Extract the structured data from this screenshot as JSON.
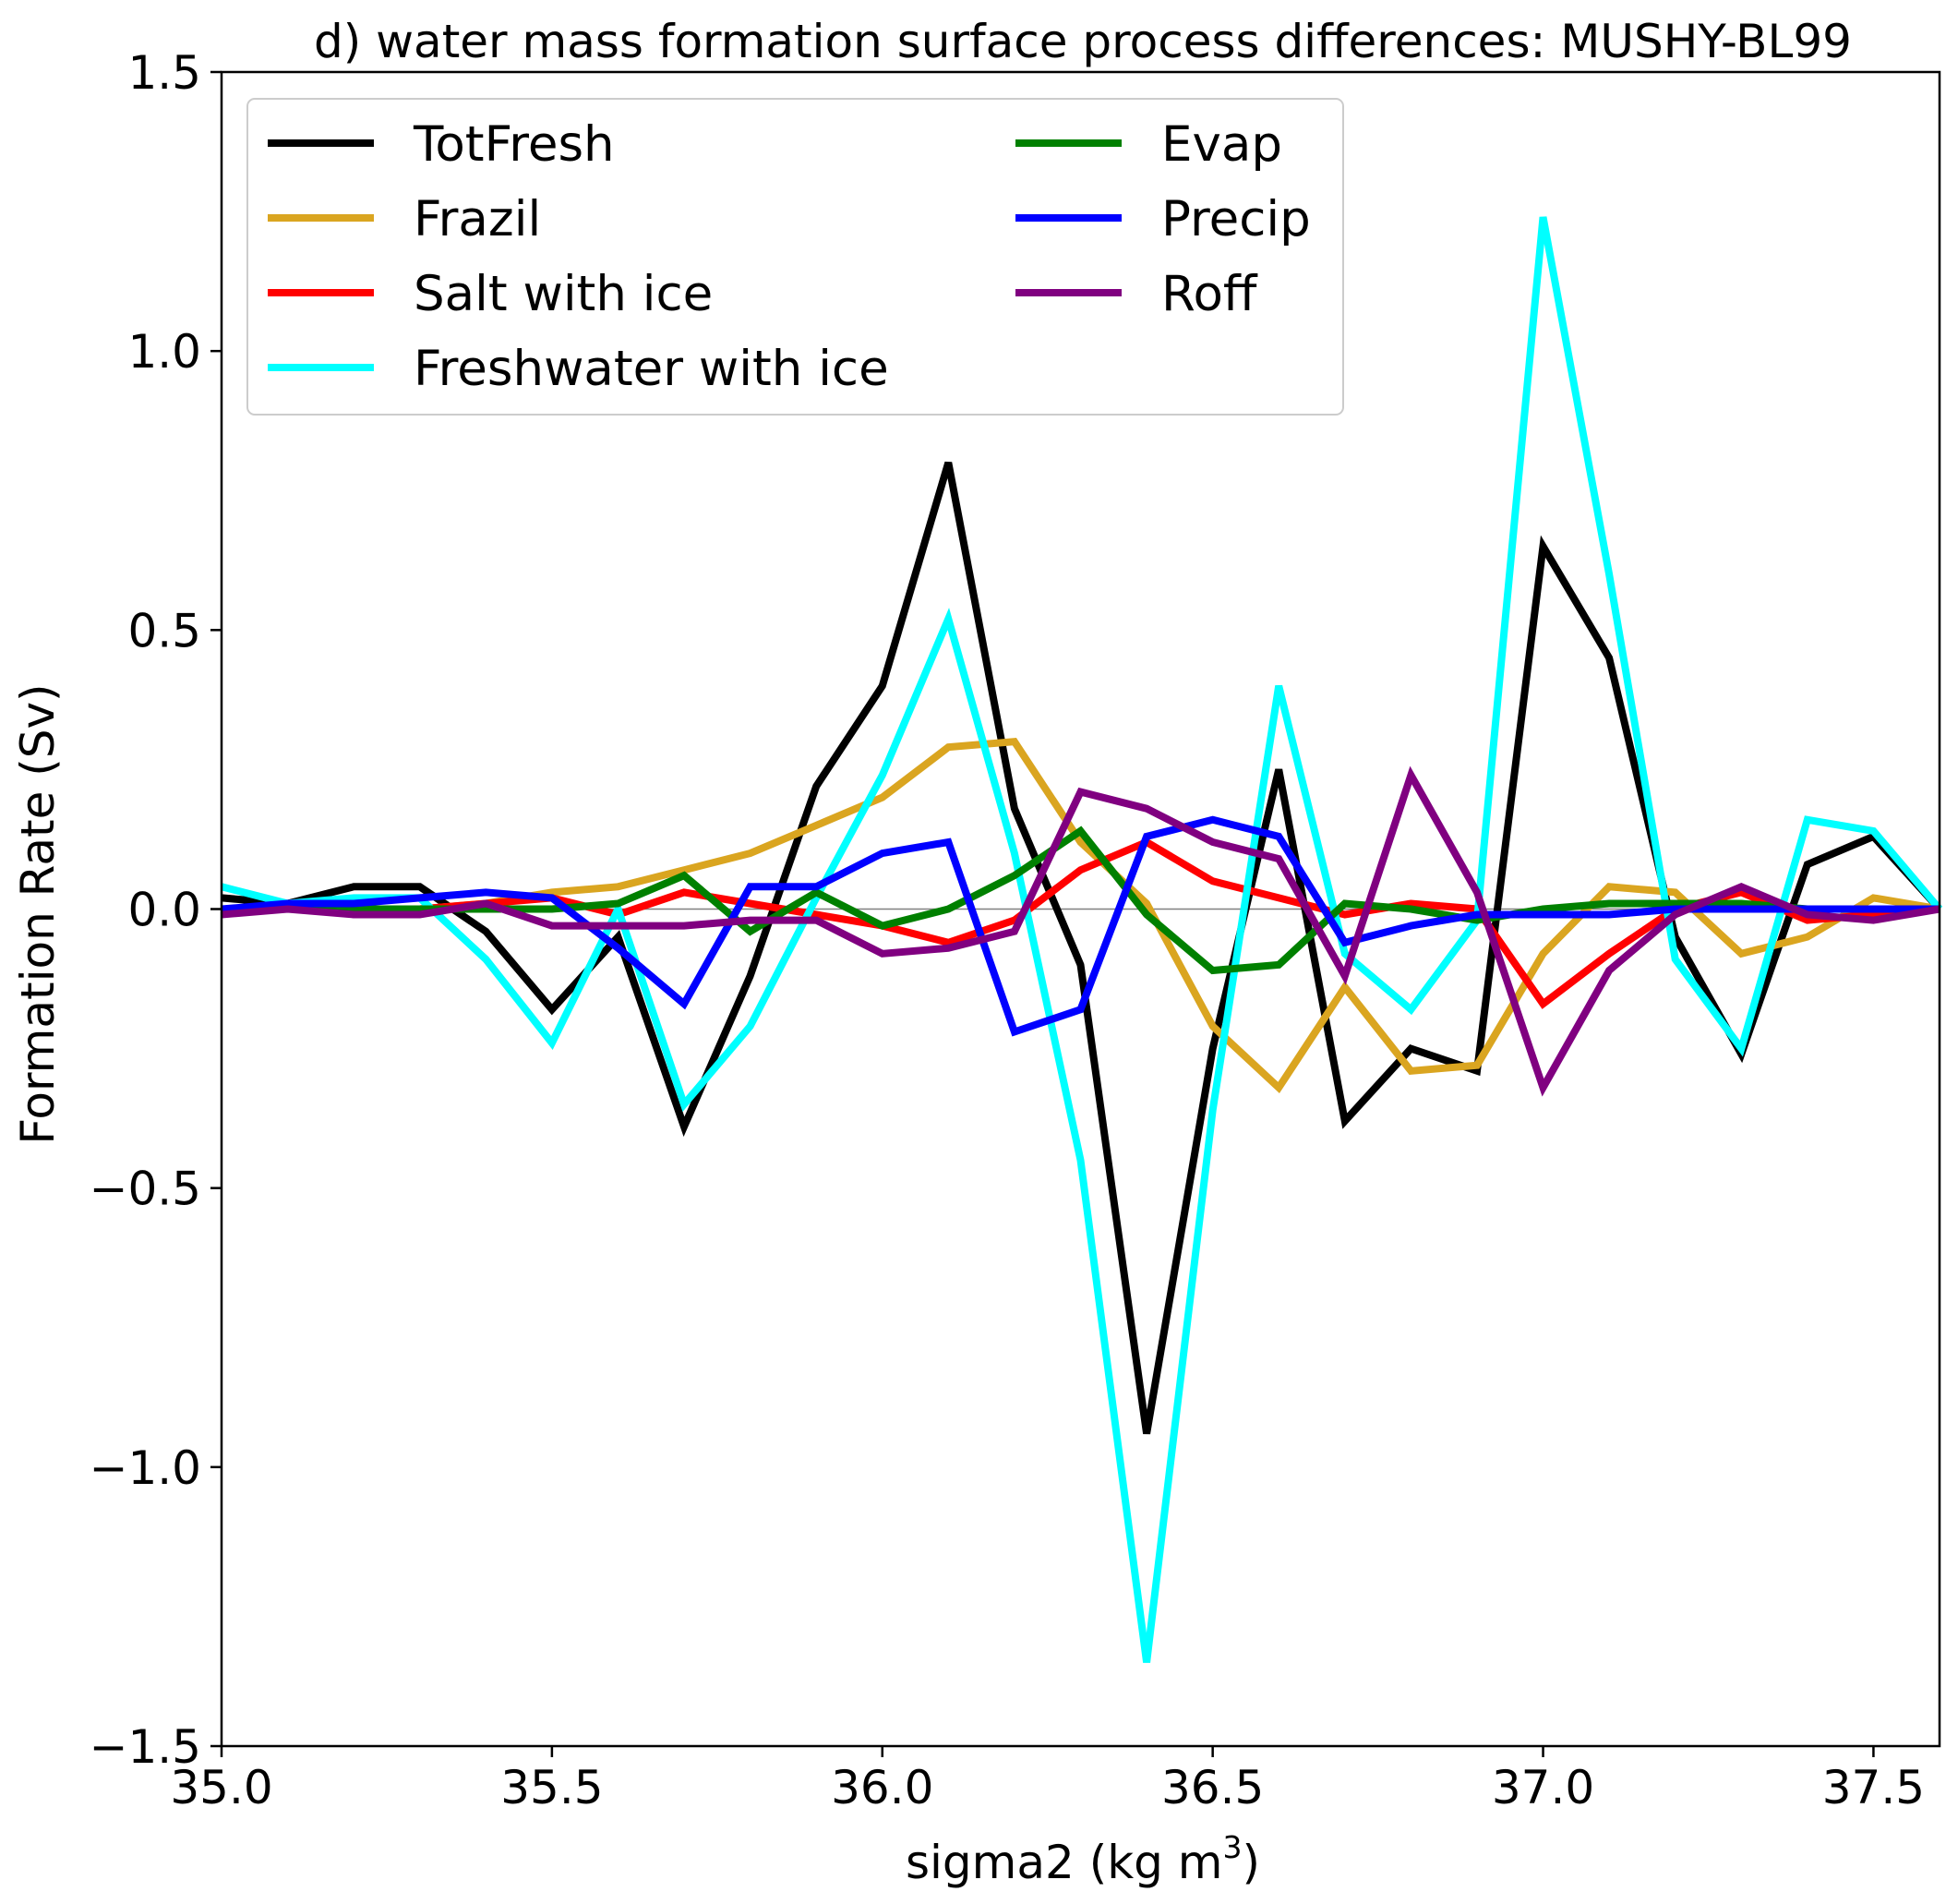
{
  "chart_data": {
    "type": "line",
    "title": "d) water mass formation surface process differences: MUSHY-BL99",
    "xlabel": "sigma2 (kg m",
    "xlabel_superscript": "3",
    "xlabel_suffix": ")",
    "ylabel": "Formation Rate (Sv)",
    "xlim": [
      35.0,
      37.6
    ],
    "ylim": [
      -1.5,
      1.5
    ],
    "x_ticks": [
      35.0,
      35.5,
      36.0,
      36.5,
      37.0,
      37.5
    ],
    "x_tick_labels": [
      "35.0",
      "35.5",
      "36.0",
      "36.5",
      "37.0",
      "37.5"
    ],
    "y_ticks": [
      1.5,
      1.0,
      0.5,
      0.0,
      -0.5,
      -1.0,
      -1.5
    ],
    "y_tick_labels": [
      "1.5",
      "1.0",
      "0.5",
      "0.0",
      "−0.5",
      "−1.0",
      "−1.5"
    ],
    "zero_line": true,
    "grid": false,
    "legend_position": "upper-left",
    "x": [
      35.0,
      35.1,
      35.2,
      35.3,
      35.4,
      35.5,
      35.6,
      35.7,
      35.8,
      35.9,
      36.0,
      36.1,
      36.2,
      36.3,
      36.4,
      36.5,
      36.6,
      36.7,
      36.8,
      36.9,
      37.0,
      37.1,
      37.2,
      37.3,
      37.4,
      37.5,
      37.6
    ],
    "series": [
      {
        "name": "TotFresh",
        "color": "#000000",
        "values": [
          0.02,
          0.01,
          0.04,
          0.04,
          -0.04,
          -0.18,
          -0.05,
          -0.39,
          -0.12,
          0.22,
          0.4,
          0.8,
          0.18,
          -0.1,
          -0.94,
          -0.25,
          0.25,
          -0.38,
          -0.25,
          -0.29,
          0.65,
          0.45,
          -0.05,
          -0.26,
          0.08,
          0.13,
          0.0
        ]
      },
      {
        "name": "Frazil",
        "color": "#daa520",
        "values": [
          0.0,
          0.0,
          0.0,
          0.0,
          0.01,
          0.03,
          0.04,
          0.07,
          0.1,
          0.15,
          0.2,
          0.29,
          0.3,
          0.12,
          0.01,
          -0.21,
          -0.32,
          -0.14,
          -0.29,
          -0.28,
          -0.08,
          0.04,
          0.03,
          -0.08,
          -0.05,
          0.02,
          0.0
        ]
      },
      {
        "name": "Salt with ice",
        "color": "#ff0000",
        "values": [
          0.0,
          0.0,
          0.0,
          0.0,
          0.01,
          0.02,
          -0.01,
          0.03,
          0.01,
          -0.01,
          -0.03,
          -0.06,
          -0.02,
          0.07,
          0.12,
          0.05,
          0.02,
          -0.01,
          0.01,
          0.0,
          -0.17,
          -0.08,
          0.0,
          0.03,
          -0.02,
          -0.01,
          0.0
        ]
      },
      {
        "name": "Freshwater with ice",
        "color": "#00ffff",
        "values": [
          0.04,
          0.01,
          0.02,
          0.02,
          -0.09,
          -0.24,
          0.0,
          -0.35,
          -0.21,
          0.02,
          0.24,
          0.52,
          0.1,
          -0.45,
          -1.35,
          -0.36,
          0.4,
          -0.08,
          -0.18,
          -0.02,
          1.24,
          0.6,
          -0.09,
          -0.25,
          0.16,
          0.14,
          0.0
        ]
      },
      {
        "name": "Evap",
        "color": "#008000",
        "values": [
          0.0,
          0.0,
          0.0,
          0.0,
          0.0,
          0.0,
          0.01,
          0.06,
          -0.04,
          0.03,
          -0.03,
          0.0,
          0.06,
          0.14,
          -0.01,
          -0.11,
          -0.1,
          0.01,
          0.0,
          -0.02,
          0.0,
          0.01,
          0.01,
          0.01,
          0.0,
          0.0,
          0.0
        ]
      },
      {
        "name": "Precip",
        "color": "#0000ff",
        "values": [
          0.0,
          0.01,
          0.01,
          0.02,
          0.03,
          0.02,
          -0.07,
          -0.17,
          0.04,
          0.04,
          0.1,
          0.12,
          -0.22,
          -0.18,
          0.13,
          0.16,
          0.13,
          -0.06,
          -0.03,
          -0.01,
          -0.01,
          -0.01,
          0.0,
          0.0,
          0.0,
          0.0,
          0.0
        ]
      },
      {
        "name": "Roff",
        "color": "#800080",
        "values": [
          -0.01,
          0.0,
          -0.01,
          -0.01,
          0.01,
          -0.03,
          -0.03,
          -0.03,
          -0.02,
          -0.02,
          -0.08,
          -0.07,
          -0.04,
          0.21,
          0.18,
          0.12,
          0.09,
          -0.12,
          0.24,
          0.03,
          -0.32,
          -0.11,
          -0.01,
          0.04,
          -0.01,
          -0.02,
          0.0
        ]
      }
    ]
  }
}
